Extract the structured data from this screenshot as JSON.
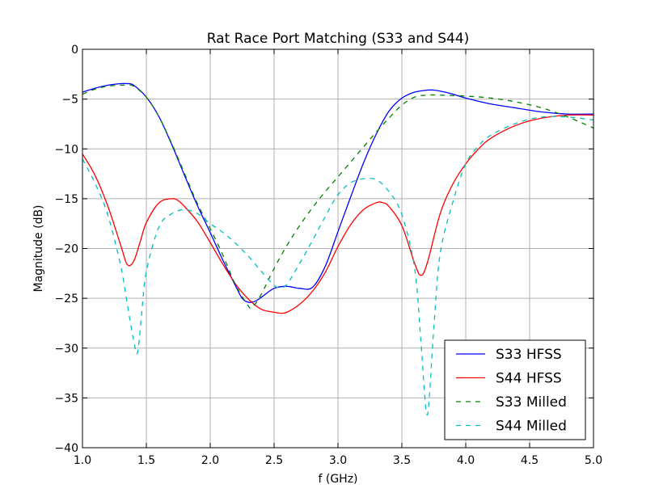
{
  "chart_data": {
    "type": "line",
    "title": "Rat Race Port Matching (S33 and S44)",
    "xlabel": "f (GHz)",
    "ylabel": "Magnitude (dB)",
    "xlim": [
      1.0,
      5.0
    ],
    "ylim": [
      -40,
      0
    ],
    "xticks": [
      1.0,
      1.5,
      2.0,
      2.5,
      3.0,
      3.5,
      4.0,
      4.5,
      5.0
    ],
    "xtick_labels": [
      "1.0",
      "1.5",
      "2.0",
      "2.5",
      "3.0",
      "3.5",
      "4.0",
      "4.5",
      "5.0"
    ],
    "yticks": [
      0,
      -5,
      -10,
      -15,
      -20,
      -25,
      -30,
      -35,
      -40
    ],
    "ytick_labels": [
      "0",
      "−5",
      "−10",
      "−15",
      "−20",
      "−25",
      "−30",
      "−35",
      "−40"
    ],
    "grid": true,
    "legend_position": "bottom-right",
    "series": [
      {
        "name": "S33 HFSS",
        "color": "#0000ff",
        "dash": "solid",
        "x": [
          1.0,
          1.1,
          1.2,
          1.3,
          1.35,
          1.4,
          1.5,
          1.6,
          1.7,
          1.8,
          1.9,
          2.0,
          2.1,
          2.2,
          2.25,
          2.3,
          2.35,
          2.4,
          2.5,
          2.6,
          2.7,
          2.8,
          2.9,
          3.0,
          3.1,
          3.2,
          3.3,
          3.4,
          3.5,
          3.6,
          3.7,
          3.75,
          3.8,
          3.9,
          4.0,
          4.2,
          4.4,
          4.6,
          4.8,
          5.0
        ],
        "y": [
          -4.3,
          -3.9,
          -3.6,
          -3.45,
          -3.45,
          -3.6,
          -4.8,
          -6.8,
          -9.6,
          -12.7,
          -15.7,
          -18.4,
          -21.2,
          -23.8,
          -25.0,
          -25.4,
          -25.3,
          -24.9,
          -24.0,
          -23.8,
          -24.0,
          -23.9,
          -21.8,
          -18.3,
          -14.8,
          -11.4,
          -8.5,
          -6.2,
          -4.9,
          -4.3,
          -4.1,
          -4.1,
          -4.2,
          -4.5,
          -4.9,
          -5.5,
          -5.9,
          -6.3,
          -6.5,
          -6.5
        ]
      },
      {
        "name": "S44 HFSS",
        "color": "#ff0000",
        "dash": "solid",
        "x": [
          1.0,
          1.1,
          1.2,
          1.3,
          1.35,
          1.4,
          1.45,
          1.5,
          1.6,
          1.7,
          1.75,
          1.8,
          1.9,
          2.0,
          2.1,
          2.2,
          2.3,
          2.4,
          2.5,
          2.55,
          2.6,
          2.7,
          2.8,
          2.9,
          3.0,
          3.1,
          3.2,
          3.3,
          3.35,
          3.4,
          3.5,
          3.6,
          3.65,
          3.7,
          3.8,
          3.9,
          4.0,
          4.1,
          4.2,
          4.4,
          4.6,
          4.8,
          5.0
        ],
        "y": [
          -10.5,
          -12.7,
          -15.8,
          -19.7,
          -21.6,
          -21.3,
          -19.4,
          -17.4,
          -15.4,
          -15.0,
          -15.2,
          -15.8,
          -17.3,
          -19.4,
          -21.6,
          -23.6,
          -25.1,
          -26.1,
          -26.4,
          -26.5,
          -26.4,
          -25.6,
          -24.3,
          -22.4,
          -19.8,
          -17.6,
          -16.1,
          -15.4,
          -15.4,
          -15.8,
          -17.7,
          -21.5,
          -22.7,
          -21.4,
          -16.5,
          -13.5,
          -11.5,
          -10.0,
          -8.9,
          -7.6,
          -6.9,
          -6.6,
          -6.6
        ]
      },
      {
        "name": "S33 Milled",
        "color": "#008000",
        "dash": "dashed",
        "x": [
          1.0,
          1.1,
          1.2,
          1.3,
          1.35,
          1.4,
          1.5,
          1.6,
          1.7,
          1.8,
          1.9,
          2.0,
          2.1,
          2.2,
          2.3,
          2.32,
          2.35,
          2.4,
          2.5,
          2.6,
          2.7,
          2.8,
          2.9,
          3.0,
          3.1,
          3.2,
          3.3,
          3.4,
          3.5,
          3.6,
          3.7,
          3.8,
          4.0,
          4.2,
          4.4,
          4.6,
          4.8,
          5.0
        ],
        "y": [
          -4.5,
          -4.0,
          -3.7,
          -3.6,
          -3.6,
          -3.7,
          -4.8,
          -6.8,
          -9.5,
          -12.5,
          -15.5,
          -18.0,
          -20.7,
          -23.7,
          -25.8,
          -25.9,
          -25.6,
          -24.6,
          -22.0,
          -19.7,
          -17.7,
          -15.9,
          -14.3,
          -12.8,
          -11.3,
          -9.8,
          -8.3,
          -6.9,
          -5.6,
          -4.8,
          -4.6,
          -4.6,
          -4.7,
          -4.9,
          -5.3,
          -5.9,
          -6.8,
          -7.9
        ]
      },
      {
        "name": "S44 Milled",
        "color": "#00bfbf",
        "dash": "dashed",
        "x": [
          1.0,
          1.1,
          1.2,
          1.3,
          1.35,
          1.4,
          1.43,
          1.46,
          1.5,
          1.6,
          1.7,
          1.8,
          1.9,
          2.0,
          2.1,
          2.2,
          2.3,
          2.4,
          2.5,
          2.55,
          2.6,
          2.7,
          2.8,
          2.9,
          3.0,
          3.1,
          3.2,
          3.3,
          3.4,
          3.5,
          3.6,
          3.65,
          3.68,
          3.7,
          3.72,
          3.75,
          3.8,
          3.9,
          4.0,
          4.1,
          4.2,
          4.4,
          4.6,
          4.8,
          5.0
        ],
        "y": [
          -11.0,
          -13.5,
          -16.7,
          -21.8,
          -25.5,
          -29.2,
          -30.5,
          -27.0,
          -22.3,
          -17.8,
          -16.5,
          -16.1,
          -16.5,
          -17.5,
          -18.4,
          -19.5,
          -20.8,
          -22.3,
          -23.7,
          -23.9,
          -23.6,
          -21.5,
          -19.2,
          -16.8,
          -14.6,
          -13.4,
          -13.0,
          -13.1,
          -14.3,
          -16.6,
          -22.0,
          -29.5,
          -35.0,
          -36.7,
          -34.0,
          -28.0,
          -20.5,
          -15.3,
          -11.5,
          -9.7,
          -8.6,
          -7.4,
          -6.8,
          -6.8,
          -7.1
        ]
      }
    ]
  }
}
